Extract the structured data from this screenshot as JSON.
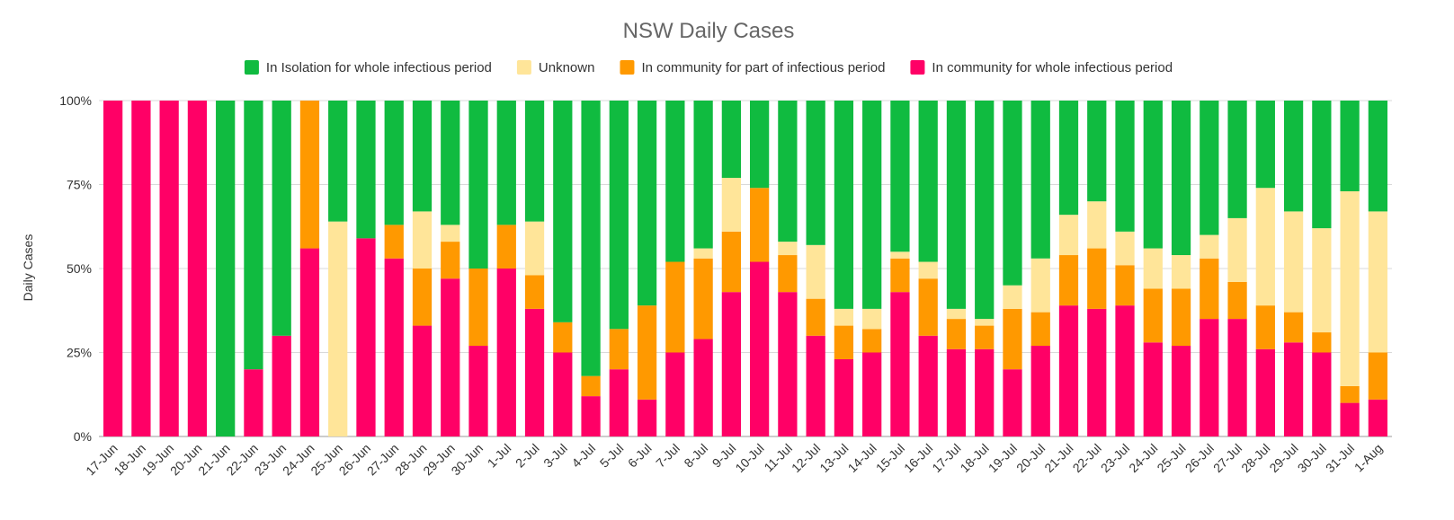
{
  "chart_data": {
    "type": "bar",
    "stacked": true,
    "percent_stacked": true,
    "title": "NSW Daily Cases",
    "ylabel": "Daily Cases",
    "xlabel": "",
    "ylim": [
      0,
      100
    ],
    "yticks": [
      0,
      25,
      50,
      75,
      100
    ],
    "ytick_labels": [
      "0%",
      "25%",
      "50%",
      "75%",
      "100%"
    ],
    "grid": true,
    "legend_position": "top",
    "categories": [
      "17-Jun",
      "18-Jun",
      "19-Jun",
      "20-Jun",
      "21-Jun",
      "22-Jun",
      "23-Jun",
      "24-Jun",
      "25-Jun",
      "26-Jun",
      "27-Jun",
      "28-Jun",
      "29-Jun",
      "30-Jun",
      "1-Jul",
      "2-Jul",
      "3-Jul",
      "4-Jul",
      "5-Jul",
      "6-Jul",
      "7-Jul",
      "8-Jul",
      "9-Jul",
      "10-Jul",
      "11-Jul",
      "12-Jul",
      "13-Jul",
      "14-Jul",
      "15-Jul",
      "16-Jul",
      "17-Jul",
      "18-Jul",
      "19-Jul",
      "20-Jul",
      "21-Jul",
      "22-Jul",
      "23-Jul",
      "24-Jul",
      "25-Jul",
      "26-Jul",
      "27-Jul",
      "28-Jul",
      "29-Jul",
      "30-Jul",
      "31-Jul",
      "1-Aug"
    ],
    "series": [
      {
        "name": "In community for whole infectious period",
        "color": "#ff0066",
        "values": [
          100,
          100,
          100,
          100,
          0,
          20,
          30,
          56,
          0,
          59,
          53,
          33,
          47,
          27,
          50,
          38,
          25,
          12,
          20,
          11,
          25,
          29,
          43,
          52,
          43,
          30,
          23,
          25,
          43,
          30,
          26,
          26,
          20,
          27,
          39,
          38,
          39,
          28,
          27,
          35,
          35,
          26,
          28,
          25,
          10,
          11
        ]
      },
      {
        "name": "In community for part of infectious period",
        "color": "#ff9900",
        "values": [
          0,
          0,
          0,
          0,
          0,
          0,
          0,
          44,
          0,
          0,
          10,
          17,
          11,
          23,
          13,
          10,
          9,
          6,
          12,
          28,
          27,
          24,
          18,
          22,
          11,
          11,
          10,
          7,
          10,
          17,
          9,
          7,
          18,
          10,
          15,
          18,
          12,
          16,
          17,
          18,
          11,
          13,
          9,
          6,
          5,
          14
        ]
      },
      {
        "name": "Unknown",
        "color": "#ffe599",
        "values": [
          0,
          0,
          0,
          0,
          0,
          0,
          0,
          0,
          64,
          0,
          0,
          17,
          5,
          0,
          0,
          16,
          0,
          0,
          0,
          0,
          0,
          3,
          16,
          0,
          4,
          16,
          5,
          6,
          2,
          5,
          3,
          2,
          7,
          16,
          12,
          14,
          10,
          12,
          10,
          7,
          19,
          35,
          30,
          31,
          58,
          42
        ]
      },
      {
        "name": "In Isolation for whole infectious period",
        "color": "#10bb40",
        "values": [
          0,
          0,
          0,
          0,
          100,
          80,
          70,
          0,
          36,
          41,
          37,
          33,
          37,
          50,
          37,
          36,
          66,
          82,
          68,
          61,
          48,
          44,
          23,
          26,
          42,
          43,
          62,
          62,
          45,
          48,
          62,
          65,
          55,
          47,
          34,
          30,
          39,
          44,
          46,
          40,
          35,
          26,
          33,
          38,
          27,
          33
        ]
      }
    ],
    "legend_order": [
      3,
      2,
      1,
      0
    ]
  }
}
